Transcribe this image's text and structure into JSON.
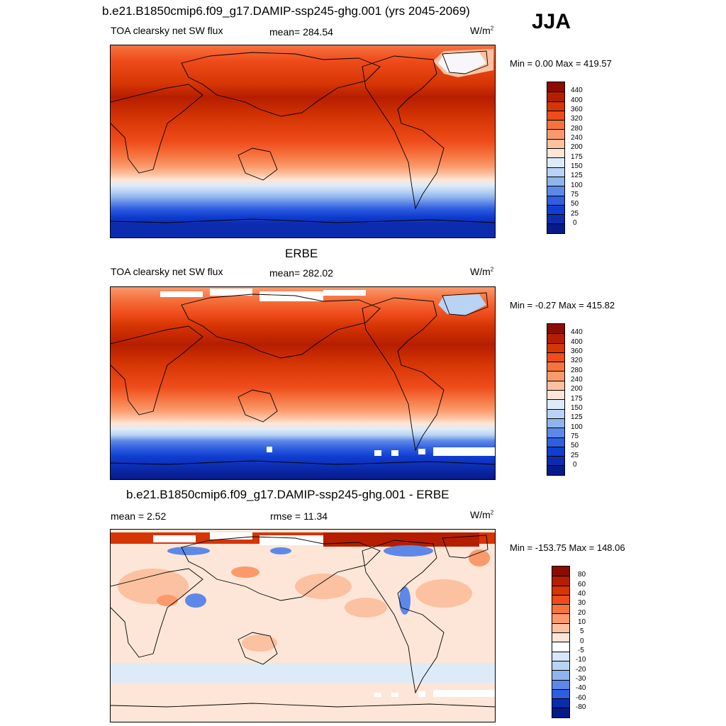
{
  "season": "JJA",
  "panels": [
    {
      "id": "model",
      "title": "b.e21.B1850cmip6.f09_g17.DAMIP-ssp245-ghg.001 (yrs 2045-2069)",
      "left_label": "TOA clearsky net SW flux",
      "mid_label": "mean= 284.54",
      "units": "W/m",
      "units_sup": "2",
      "minmax": "Min =   0.00 Max = 419.57"
    },
    {
      "id": "obs",
      "title": "ERBE",
      "left_label": "TOA clearsky net SW flux",
      "mid_label": "mean= 282.02",
      "units": "W/m",
      "units_sup": "2",
      "minmax": "Min =  -0.27 Max = 415.82"
    },
    {
      "id": "diff",
      "title": "b.e21.B1850cmip6.f09_g17.DAMIP-ssp245-ghg.001 - ERBE",
      "left_label": "mean =   2.52",
      "mid_label": "rmse =  11.34",
      "units": "W/m",
      "units_sup": "2",
      "minmax": "Min = -153.75 Max = 148.06"
    }
  ],
  "colorbar_abs": {
    "labels": [
      "440",
      "400",
      "360",
      "320",
      "280",
      "240",
      "200",
      "175",
      "150",
      "125",
      "100",
      "75",
      "50",
      "25",
      "0"
    ],
    "colors": [
      "#8b0c00",
      "#b51e00",
      "#d63504",
      "#ee4c1b",
      "#f6733f",
      "#fa9a6c",
      "#fcc1a0",
      "#fde6d7",
      "#ddebf9",
      "#b8d3f4",
      "#8fb4ee",
      "#5e88e8",
      "#2f5ee0",
      "#103ed1",
      "#0b2cae",
      "#061a88"
    ]
  },
  "colorbar_diff": {
    "labels": [
      "80",
      "60",
      "40",
      "30",
      "20",
      "10",
      "5",
      "0",
      "-5",
      "-10",
      "-20",
      "-30",
      "-40",
      "-60",
      "-80"
    ],
    "colors": [
      "#8b0c00",
      "#b51e00",
      "#d63504",
      "#ee4c1b",
      "#f6733f",
      "#fa9a6c",
      "#fcc1a0",
      "#fde6d7",
      "#ffffff",
      "#d7e6f8",
      "#b8d3f4",
      "#8fb4ee",
      "#5e88e8",
      "#2f5ee0",
      "#0b2cae",
      "#061a88"
    ]
  }
}
